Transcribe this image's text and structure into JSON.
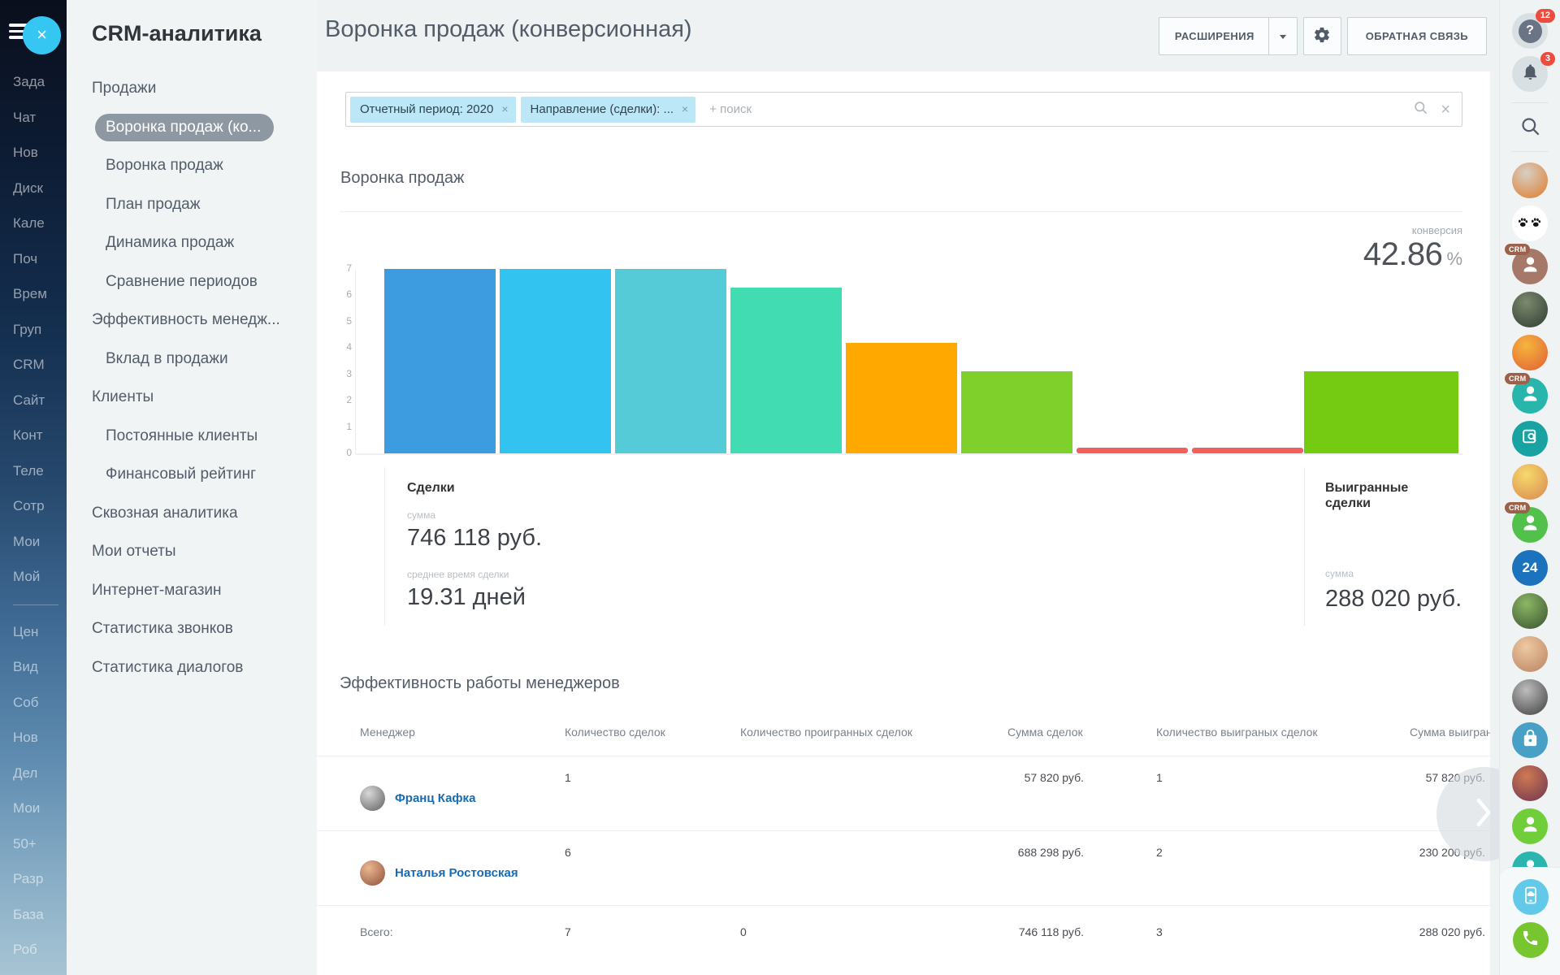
{
  "colors": {
    "accent_blue": "#35c7f1",
    "chip_bg": "#bce7f7",
    "link_blue": "#1a6ab2",
    "badge_red": "#ee4a3e",
    "active_menu_pill": "#8e98a2"
  },
  "left_rail": {
    "items": [
      "Зада",
      "Чат",
      "Нов",
      "Диск",
      "Кале",
      "Поч",
      "Врем",
      "Груп",
      "CRM",
      "Сайт",
      "Конт",
      "Теле",
      "Сотр",
      "Мои",
      "Мой",
      "—",
      "Цен",
      "Вид",
      "Соб",
      "Нов",
      "Дел",
      "Мои",
      "50+",
      "Разр",
      "База",
      "Роб"
    ]
  },
  "menu": {
    "title": "CRM-аналитика",
    "items": [
      {
        "label": "Продажи",
        "level": 1
      },
      {
        "label": "Воронка продаж (ко...",
        "level": 2,
        "active": true
      },
      {
        "label": "Воронка продаж",
        "level": 2
      },
      {
        "label": "План продаж",
        "level": 2
      },
      {
        "label": "Динамика продаж",
        "level": 2
      },
      {
        "label": "Сравнение периодов",
        "level": 2
      },
      {
        "label": "Эффективность менедж...",
        "level": 1
      },
      {
        "label": "Вклад в продажи",
        "level": 2
      },
      {
        "label": "Клиенты",
        "level": 1
      },
      {
        "label": "Постоянные клиенты",
        "level": 2
      },
      {
        "label": "Финансовый рейтинг",
        "level": 2
      },
      {
        "label": "Сквозная аналитика",
        "level": 1
      },
      {
        "label": "Мои отчеты",
        "level": 1
      },
      {
        "label": "Интернет-магазин",
        "level": 1
      },
      {
        "label": "Статистика звонков",
        "level": 1
      },
      {
        "label": "Статистика диалогов",
        "level": 1
      }
    ]
  },
  "header": {
    "page_title": "Воронка продаж (конверсионная)",
    "extensions_label": "РАСШИРЕНИЯ",
    "feedback_label": "ОБРАТНАЯ СВЯЗЬ"
  },
  "filter": {
    "chips": [
      "Отчетный период: 2020",
      "Направление (сделки): ..."
    ],
    "chip_close": "×",
    "placeholder": "+ поиск",
    "clear": "×"
  },
  "chart_data": {
    "type": "funnel-bar",
    "title": "Воронка продаж",
    "conversion_label": "конверсия",
    "conversion_value": "42.86",
    "conversion_unit": "%",
    "ylim": [
      0,
      7
    ],
    "yticks": [
      0,
      1,
      2,
      3,
      4,
      5,
      6,
      7
    ],
    "grid": false,
    "legend": "none",
    "stages": [
      {
        "value": 7,
        "color": "#3d9be0"
      },
      {
        "value": 7,
        "color": "#33c3f0"
      },
      {
        "value": 7,
        "color": "#54cbd7"
      },
      {
        "value": 6.3,
        "color": "#42dcb2"
      },
      {
        "value": 4.2,
        "color": "#ffa800"
      },
      {
        "value": 3.1,
        "color": "#7fd02b"
      },
      {
        "value": 0.2,
        "color": "#f1605c"
      },
      {
        "value": 0.2,
        "color": "#f1605c"
      },
      {
        "value": 3.1,
        "color": "#74cb11",
        "wide": true
      }
    ],
    "first_stage_label": "Сделки",
    "last_stage_label": "Выигранные сделки"
  },
  "stats": {
    "deals": {
      "title": "Сделки",
      "sum_label": "сумма",
      "sum_value": "746 118 руб.",
      "avg_label": "среднее время сделки",
      "avg_value": "19.31 дней"
    },
    "won": {
      "title": "Выигранные сделки",
      "sum_label": "сумма",
      "sum_value": "288 020 руб."
    }
  },
  "managers": {
    "title": "Эффективность работы менеджеров",
    "columns": [
      "Менеджер",
      "Количество сделок",
      "Количество проигранных сделок",
      "Сумма сделок",
      "Количество выиграных сделок",
      "Сумма выиграных сделок"
    ],
    "rows": [
      {
        "name": "Франц Кафка",
        "deals": "1",
        "lost": "",
        "deals_sum": "57 820 руб.",
        "won": "1",
        "won_sum": "57 820 руб.",
        "avatar_colors": [
          "#d8d8d8",
          "#5f5f5f"
        ]
      },
      {
        "name": "Наталья Ростовская",
        "deals": "6",
        "lost": "",
        "deals_sum": "688 298 руб.",
        "won": "2",
        "won_sum": "230 200 руб.",
        "avatar_colors": [
          "#eab88f",
          "#8f4e3a"
        ]
      }
    ],
    "total": {
      "label": "Всего:",
      "deals": "7",
      "lost": "0",
      "deals_sum": "746 118 руб.",
      "won": "3",
      "won_sum": "288 020 руб."
    }
  },
  "right_rail": {
    "crm_badge_label": "CRM",
    "items": [
      {
        "name": "helpdesk",
        "type": "help",
        "badge": "12"
      },
      {
        "name": "notifications",
        "type": "bell",
        "badge": "3"
      },
      {
        "type": "divider"
      },
      {
        "name": "search",
        "type": "search"
      },
      {
        "type": "divider"
      },
      {
        "name": "chat-avatar-worker",
        "type": "photo",
        "colors": [
          "#d8cfc4",
          "#de7b2c"
        ]
      },
      {
        "name": "chat-avatar-paws",
        "type": "icon",
        "icon": "paws",
        "bg": "#ffffff"
      },
      {
        "name": "chat-crm-contact-1",
        "type": "icon",
        "icon": "person",
        "bg": "#a5786a",
        "crm": true
      },
      {
        "name": "chat-avatar-woman-dark",
        "type": "photo",
        "colors": [
          "#7c8a6e",
          "#2f3a31"
        ]
      },
      {
        "name": "chat-avatar-orange",
        "type": "photo",
        "colors": [
          "#f6b53e",
          "#df5f33"
        ]
      },
      {
        "name": "chat-crm-contact-2",
        "type": "icon",
        "icon": "person",
        "bg": "#28b5ac",
        "crm": true
      },
      {
        "name": "chat-doc-search",
        "type": "icon",
        "icon": "docsearch",
        "bg": "#18a2a2"
      },
      {
        "name": "chat-avatar-cartoon",
        "type": "photo",
        "colors": [
          "#f8d96b",
          "#d7874f"
        ]
      },
      {
        "name": "chat-crm-contact-3",
        "type": "icon",
        "icon": "person",
        "bg": "#52c14c",
        "crm": true
      },
      {
        "name": "bitrix24",
        "type": "icon",
        "icon": "b24",
        "bg": "#1b72bd",
        "label": "24"
      },
      {
        "name": "chat-avatar-man-green",
        "type": "photo",
        "colors": [
          "#8cb765",
          "#37512f"
        ]
      },
      {
        "name": "chat-avatar-blonde",
        "type": "photo",
        "colors": [
          "#eec9a2",
          "#b9825f"
        ]
      },
      {
        "name": "chat-avatar-kafka",
        "type": "photo",
        "colors": [
          "#bdbdbd",
          "#3f3f3f"
        ]
      },
      {
        "name": "chat-lock",
        "type": "icon",
        "icon": "lock",
        "bg": "#49a0c6"
      },
      {
        "name": "chat-avatar-redhead",
        "type": "photo",
        "colors": [
          "#cf7a52",
          "#6e3350"
        ]
      },
      {
        "name": "chat-person-green",
        "type": "icon",
        "icon": "person",
        "bg": "#6fce39"
      },
      {
        "name": "chat-avatar-partial",
        "type": "icon",
        "icon": "person",
        "bg": "#2ab5ae"
      }
    ],
    "bottom_items": [
      {
        "name": "mobile-app",
        "type": "icon",
        "icon": "mobile",
        "bg": "#63c9e9"
      },
      {
        "name": "telephony",
        "type": "icon",
        "icon": "phone",
        "bg": "#77c62f"
      }
    ]
  }
}
